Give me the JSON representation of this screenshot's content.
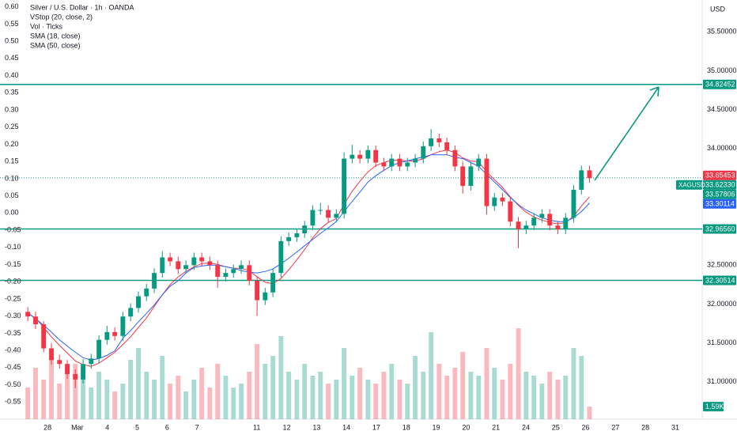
{
  "chart_data": {
    "type": "candlestick",
    "title": "Silver / U.S. Dollar · 1h · OANDA",
    "currency": "USD",
    "indicators": [
      "VStop (20, close, 2)"
    ],
    "symbol_volume_name": "Vol · Ticks",
    "xlim": [
      -1.59,
      21.9
    ],
    "xticks": [
      {
        "value": 0,
        "label": "28"
      },
      {
        "value": 1,
        "label": "Mar"
      },
      {
        "value": 2,
        "label": "4"
      },
      {
        "value": 3,
        "label": "5"
      },
      {
        "value": 4,
        "label": "6"
      },
      {
        "value": 5,
        "label": "7"
      },
      {
        "value": 7,
        "label": "11"
      },
      {
        "value": 8,
        "label": "12"
      },
      {
        "value": 9,
        "label": "13"
      },
      {
        "value": 10,
        "label": "14"
      },
      {
        "value": 11,
        "label": "17"
      },
      {
        "value": 12,
        "label": "18"
      },
      {
        "value": 13,
        "label": "19"
      },
      {
        "value": 14,
        "label": "20"
      },
      {
        "value": 15,
        "label": "21"
      },
      {
        "value": 16,
        "label": "24"
      },
      {
        "value": 17,
        "label": "25"
      },
      {
        "value": 18,
        "label": "26"
      },
      {
        "value": 19,
        "label": "27"
      },
      {
        "value": 20,
        "label": "28"
      },
      {
        "value": 21,
        "label": "31"
      }
    ],
    "ylim": [
      30.52,
      35.91
    ],
    "yticks": [
      {
        "value": 35.5,
        "label": "35.50000"
      },
      {
        "value": 35,
        "label": "35.00000"
      },
      {
        "value": 34.5,
        "label": "34.50000"
      },
      {
        "value": 34,
        "label": "34.00000"
      },
      {
        "value": 32.5,
        "label": "32.50000"
      },
      {
        "value": 32,
        "label": "32.00000"
      },
      {
        "value": 31.5,
        "label": "31.50000"
      },
      {
        "value": 31,
        "label": "31.00000"
      }
    ],
    "y2lim": [
      -0.6,
      0.62
    ],
    "y2ticks": [
      {
        "value": 0.6,
        "label": "0.60"
      },
      0.55,
      {
        "value": 0.5,
        "label": "0.50"
      },
      0.45,
      {
        "value": 0.4,
        "label": "0.40"
      },
      0.35,
      {
        "value": 0.3,
        "label": "0.30"
      },
      0.25,
      {
        "value": 0.2,
        "label": "0.20"
      },
      0.15,
      {
        "value": 0.1,
        "label": "0.10"
      },
      0.05,
      {
        "value": 0,
        "label": "0.00"
      },
      -0.05,
      {
        "value": -0.1,
        "label": "-0.10"
      },
      -0.15,
      {
        "value": -0.2,
        "label": "-0.20"
      },
      -0.25,
      {
        "value": -0.3,
        "label": "-0.30"
      },
      -0.35,
      {
        "value": -0.4,
        "label": "-0.40"
      },
      -0.45,
      {
        "value": -0.5,
        "label": "-0.50"
      },
      -0.55
    ],
    "up_color": "#089981",
    "down_color": "#f23645",
    "x": [
      -0.66,
      -0.4,
      -0.13,
      0.13,
      0.4,
      0.66,
      0.93,
      1.19,
      1.46,
      1.72,
      1.99,
      2.25,
      2.52,
      2.78,
      3.04,
      3.31,
      3.57,
      3.84,
      4.1,
      4.37,
      4.63,
      4.9,
      5.16,
      5.43,
      5.69,
      5.96,
      6.22,
      6.48,
      6.75,
      7.01,
      7.28,
      7.54,
      7.81,
      8.07,
      8.34,
      8.6,
      8.87,
      9.13,
      9.39,
      9.66,
      9.92,
      10.19,
      10.45,
      10.72,
      10.98,
      11.25,
      11.51,
      11.78,
      12.04,
      12.3,
      12.57,
      12.83,
      13.1,
      13.36,
      13.63,
      13.89,
      14.16,
      14.42,
      14.69,
      14.95,
      15.22,
      15.48,
      15.75,
      16.01,
      16.27,
      16.54,
      16.8,
      17.07,
      17.33,
      17.6,
      17.86,
      18.13
    ],
    "candles": [
      [
        31.9,
        31.96,
        31.78,
        31.84
      ],
      [
        31.84,
        31.9,
        31.68,
        31.74
      ],
      [
        31.74,
        31.78,
        31.38,
        31.43
      ],
      [
        31.43,
        31.5,
        31.22,
        31.28
      ],
      [
        31.28,
        31.35,
        31.17,
        31.23
      ],
      [
        31.23,
        31.28,
        31.04,
        31.1
      ],
      [
        31.1,
        31.16,
        30.92,
        31.03
      ],
      [
        31.03,
        31.29,
        30.98,
        31.23
      ],
      [
        31.23,
        31.36,
        31.17,
        31.3
      ],
      [
        31.3,
        31.6,
        31.24,
        31.54
      ],
      [
        31.54,
        31.72,
        31.48,
        31.64
      ],
      [
        31.64,
        31.7,
        31.53,
        31.59
      ],
      [
        31.59,
        31.9,
        31.53,
        31.84
      ],
      [
        31.84,
        32.01,
        31.78,
        31.95
      ],
      [
        31.95,
        32.16,
        31.89,
        32.1
      ],
      [
        32.1,
        32.26,
        32.04,
        32.2
      ],
      [
        32.2,
        32.46,
        32.14,
        32.4
      ],
      [
        32.4,
        32.68,
        32.34,
        32.6
      ],
      [
        32.6,
        32.66,
        32.49,
        32.55
      ],
      [
        32.55,
        32.61,
        32.39,
        32.45
      ],
      [
        32.45,
        32.56,
        32.39,
        32.5
      ],
      [
        32.5,
        32.66,
        32.44,
        32.6
      ],
      [
        32.6,
        32.66,
        32.49,
        32.55
      ],
      [
        32.55,
        32.61,
        32.44,
        32.5
      ],
      [
        32.5,
        32.56,
        32.21,
        32.35
      ],
      [
        32.35,
        32.46,
        32.29,
        32.4
      ],
      [
        32.4,
        32.51,
        32.34,
        32.45
      ],
      [
        32.45,
        32.56,
        32.39,
        32.5
      ],
      [
        32.5,
        32.56,
        32.24,
        32.3
      ],
      [
        32.3,
        32.36,
        31.85,
        32.05
      ],
      [
        32.05,
        32.21,
        31.99,
        32.15
      ],
      [
        32.15,
        32.46,
        32.09,
        32.4
      ],
      [
        32.4,
        32.87,
        32.34,
        32.81
      ],
      [
        32.81,
        32.92,
        32.75,
        32.86
      ],
      [
        32.86,
        32.97,
        32.8,
        32.91
      ],
      [
        32.91,
        33.07,
        32.85,
        33.01
      ],
      [
        33.01,
        33.27,
        32.95,
        33.21
      ],
      [
        33.21,
        33.3,
        33.15,
        33.21
      ],
      [
        33.21,
        33.27,
        33.05,
        33.11
      ],
      [
        33.11,
        33.22,
        33.05,
        33.16
      ],
      [
        33.16,
        33.95,
        33.1,
        33.87
      ],
      [
        33.87,
        34.05,
        33.81,
        33.92
      ],
      [
        33.92,
        33.98,
        33.81,
        33.87
      ],
      [
        33.87,
        34.04,
        33.81,
        33.98
      ],
      [
        33.98,
        34.04,
        33.76,
        33.82
      ],
      [
        33.82,
        33.88,
        33.71,
        33.77
      ],
      [
        33.77,
        33.93,
        33.71,
        33.87
      ],
      [
        33.87,
        33.93,
        33.71,
        33.77
      ],
      [
        33.77,
        33.88,
        33.71,
        33.82
      ],
      [
        33.82,
        33.93,
        33.76,
        33.87
      ],
      [
        33.87,
        34.09,
        33.81,
        34.03
      ],
      [
        34.03,
        34.25,
        33.97,
        34.13
      ],
      [
        34.13,
        34.19,
        34.02,
        34.08
      ],
      [
        34.08,
        34.14,
        33.92,
        33.98
      ],
      [
        33.98,
        34.04,
        33.71,
        33.77
      ],
      [
        33.77,
        33.83,
        33.42,
        33.52
      ],
      [
        33.52,
        33.83,
        33.46,
        33.77
      ],
      [
        33.77,
        33.93,
        33.71,
        33.87
      ],
      [
        33.87,
        33.93,
        33.15,
        33.26
      ],
      [
        33.26,
        33.43,
        33.2,
        33.37
      ],
      [
        33.37,
        33.43,
        33.26,
        33.32
      ],
      [
        33.32,
        33.38,
        33.0,
        33.06
      ],
      [
        33.06,
        33.12,
        32.72,
        32.96
      ],
      [
        32.96,
        33.07,
        32.9,
        33.01
      ],
      [
        33.01,
        33.17,
        32.95,
        33.11
      ],
      [
        33.11,
        33.22,
        33.05,
        33.16
      ],
      [
        33.16,
        33.22,
        32.95,
        33.01
      ],
      [
        33.01,
        33.07,
        32.9,
        32.96
      ],
      [
        32.96,
        33.17,
        32.9,
        33.11
      ],
      [
        33.11,
        33.53,
        33.05,
        33.47
      ],
      [
        33.47,
        33.78,
        33.41,
        33.72
      ],
      [
        33.72,
        33.78,
        33.56,
        33.62
      ]
    ],
    "series": [
      {
        "name": "SMA (18, close)",
        "color": "#f23645",
        "values": [
          31.88,
          31.82,
          31.7,
          31.58,
          31.47,
          31.37,
          31.27,
          31.22,
          31.2,
          31.24,
          31.31,
          31.38,
          31.48,
          31.58,
          31.7,
          31.82,
          31.97,
          32.12,
          32.25,
          32.35,
          32.42,
          32.48,
          32.52,
          32.53,
          32.51,
          32.48,
          32.46,
          32.46,
          32.43,
          32.35,
          32.28,
          32.26,
          32.33,
          32.44,
          32.57,
          32.7,
          32.85,
          32.97,
          33.05,
          33.1,
          33.28,
          33.45,
          33.58,
          33.7,
          33.78,
          33.82,
          33.85,
          33.85,
          33.84,
          33.84,
          33.87,
          33.92,
          33.96,
          33.98,
          33.95,
          33.88,
          33.84,
          33.83,
          33.7,
          33.6,
          33.5,
          33.38,
          33.27,
          33.18,
          33.12,
          33.08,
          33.05,
          33.03,
          33.05,
          33.13,
          33.26,
          33.38
        ]
      },
      {
        "name": "SMA (50, close)",
        "color": "#2962ff",
        "values": [
          31.89,
          31.81,
          31.73,
          31.64,
          31.54,
          31.46,
          31.38,
          31.31,
          31.28,
          31.3,
          31.34,
          31.4,
          31.56,
          31.66,
          31.77,
          31.88,
          31.99,
          32.12,
          32.23,
          32.3,
          32.4,
          32.47,
          32.49,
          32.5,
          32.5,
          32.48,
          32.46,
          32.43,
          32.41,
          32.4,
          32.42,
          32.45,
          32.52,
          32.59,
          32.67,
          32.75,
          32.83,
          32.91,
          32.98,
          33.06,
          33.19,
          33.32,
          33.44,
          33.57,
          33.65,
          33.72,
          33.78,
          33.82,
          33.84,
          33.87,
          33.89,
          33.92,
          33.92,
          33.92,
          33.89,
          33.87,
          33.82,
          33.77,
          33.67,
          33.57,
          33.47,
          33.37,
          33.28,
          33.21,
          33.16,
          33.11,
          33.08,
          33.06,
          33.06,
          33.11,
          33.19,
          33.3
        ]
      }
    ],
    "vlim": [
      0,
      53000
    ],
    "volume": [
      4000,
      6500,
      5000,
      8000,
      4500,
      6000,
      7000,
      5500,
      4000,
      6000,
      5000,
      3500,
      4500,
      7500,
      9000,
      6000,
      5000,
      8000,
      4500,
      5500,
      3500,
      5000,
      6500,
      4000,
      7000,
      5500,
      4000,
      4500,
      6000,
      9500,
      7000,
      8000,
      10500,
      6000,
      5000,
      7000,
      5500,
      6000,
      4500,
      5000,
      9000,
      5500,
      6500,
      5000,
      4500,
      6000,
      7000,
      5000,
      4500,
      8000,
      6000,
      11000,
      7000,
      5500,
      6500,
      8500,
      6000,
      5500,
      9000,
      6500,
      5000,
      7000,
      11500,
      6000,
      5500,
      4500,
      6000,
      5000,
      5500,
      9000,
      8000,
      1590
    ],
    "volume_tag": {
      "value": 1590,
      "label": "1.59K",
      "color": "#089981"
    },
    "price_tags": [
      {
        "value": 34.82452,
        "color": "#089981",
        "level": true
      },
      {
        "value": 33.65453,
        "color": "#f23645"
      },
      {
        "value": 33.6233,
        "label": "33.62330",
        "symbol": "XAGUSD",
        "color": "#089981",
        "dotted": true
      },
      {
        "value": 33.57806,
        "color": "#089981"
      },
      {
        "value": 33.30114,
        "color": "#2962ff"
      },
      {
        "value": 32.9656,
        "label": "32.96560",
        "color": "#089981",
        "level": true
      },
      {
        "value": 32.30514,
        "color": "#089981",
        "level": true
      }
    ]
  }
}
